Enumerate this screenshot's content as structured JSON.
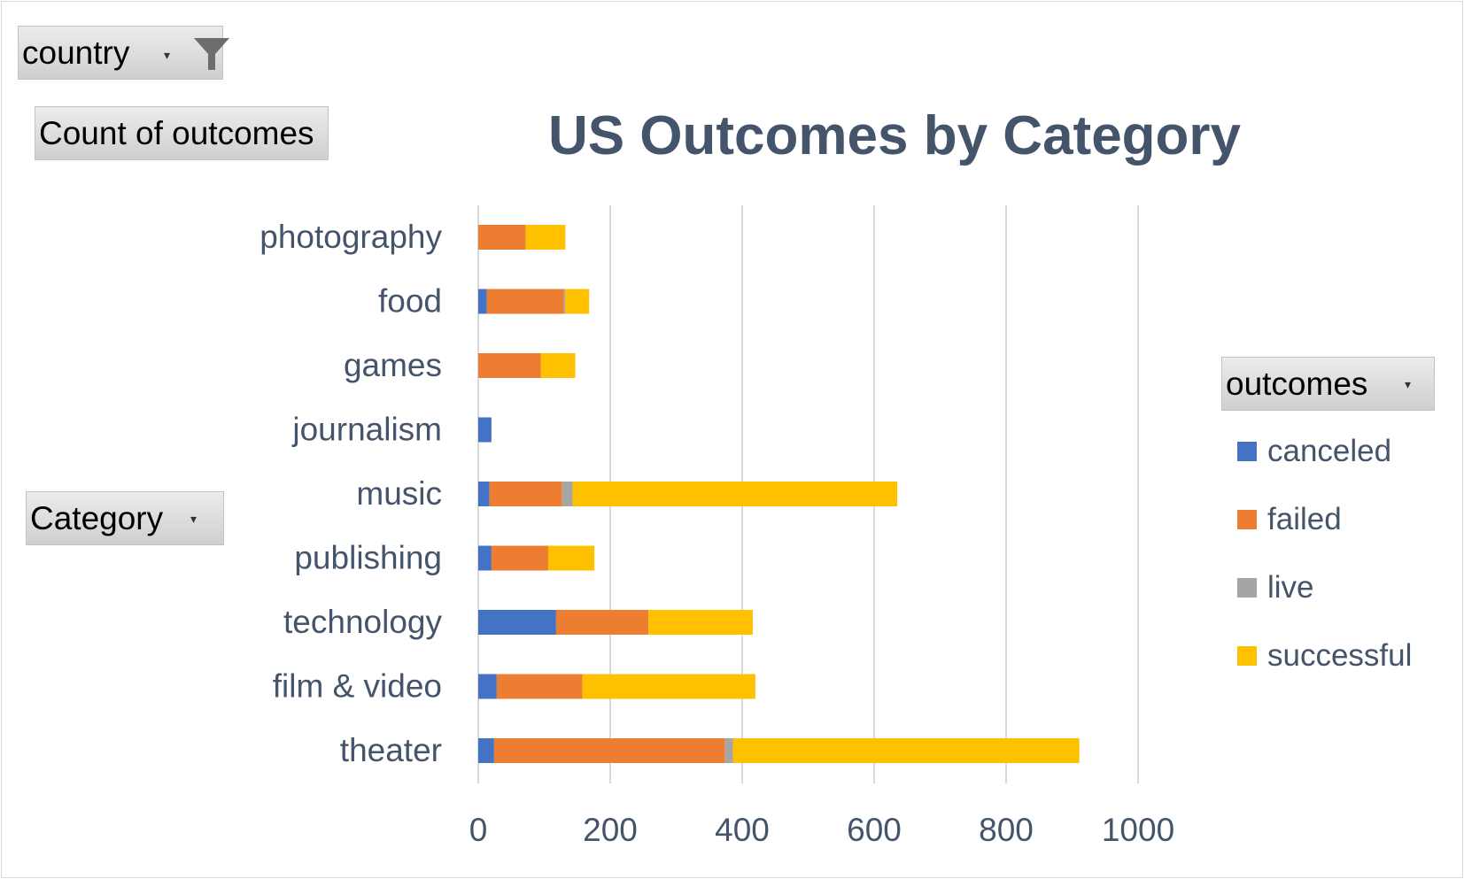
{
  "filters": {
    "country": {
      "label": "country"
    },
    "values_field": {
      "label": "Count of outcomes"
    },
    "row_field": {
      "label": "Category"
    },
    "legend_field": {
      "label": "outcomes"
    }
  },
  "chart_data": {
    "type": "bar",
    "orientation": "horizontal",
    "stacked": true,
    "title": "US Outcomes by Category",
    "categories": [
      "photography",
      "food",
      "games",
      "journalism",
      "music",
      "publishing",
      "technology",
      "film & video",
      "theater"
    ],
    "series": [
      {
        "name": "canceled",
        "color": "#4472c4",
        "values": [
          0,
          13,
          0,
          20,
          17,
          20,
          118,
          28,
          24
        ]
      },
      {
        "name": "failed",
        "color": "#ed7d31",
        "values": [
          72,
          117,
          95,
          0,
          110,
          86,
          140,
          130,
          350
        ]
      },
      {
        "name": "live",
        "color": "#a5a5a5",
        "values": [
          0,
          2,
          0,
          0,
          16,
          0,
          0,
          0,
          12
        ]
      },
      {
        "name": "successful",
        "color": "#ffc000",
        "values": [
          60,
          36,
          52,
          0,
          492,
          70,
          158,
          262,
          525
        ]
      }
    ],
    "xlim": [
      0,
      1000
    ],
    "xticks": [
      0,
      200,
      400,
      600,
      800,
      1000
    ],
    "grid": true,
    "legend_position": "right"
  }
}
